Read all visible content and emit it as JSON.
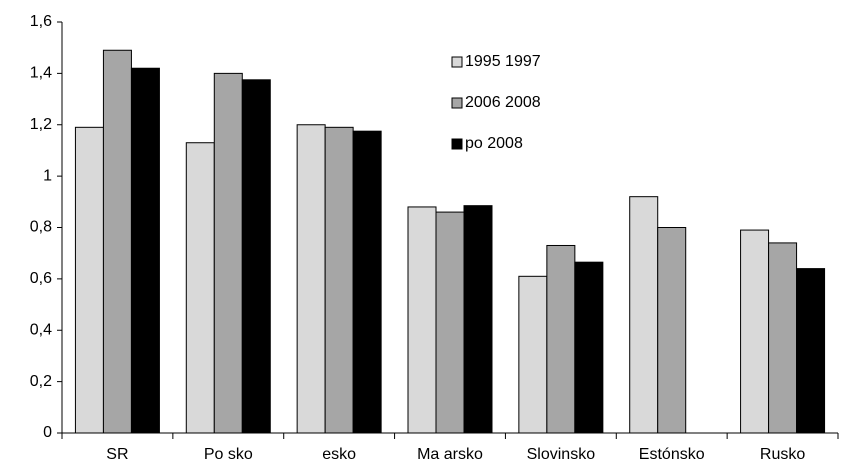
{
  "chart_data": {
    "type": "bar",
    "categories": [
      "SR",
      "Po sko",
      "esko",
      "Ma arsko",
      "Slovinsko",
      "Estónsko",
      "Rusko"
    ],
    "series": [
      {
        "name": "1995 1997",
        "color": "#d9d9d9",
        "values": [
          1.19,
          1.13,
          1.2,
          0.88,
          0.61,
          0.92,
          0.79
        ]
      },
      {
        "name": "2006 2008",
        "color": "#a6a6a6",
        "values": [
          1.49,
          1.4,
          1.19,
          0.86,
          0.73,
          0.8,
          0.74
        ]
      },
      {
        "name": "po 2008",
        "color": "#000000",
        "values": [
          1.42,
          1.375,
          1.175,
          0.885,
          0.665,
          null,
          0.64
        ]
      }
    ],
    "ylim": [
      0,
      1.6
    ],
    "yticks": [
      0,
      {
        "value": 0.2,
        "label": "0,2"
      },
      {
        "value": 0.4,
        "label": "0,4"
      },
      {
        "value": 0.6,
        "label": "0,6"
      },
      {
        "value": 0.8,
        "label": "0,8"
      },
      1,
      {
        "value": 1.2,
        "label": "1,2"
      },
      {
        "value": 1.4,
        "label": "1,4"
      },
      {
        "value": 1.6,
        "label": "1,6"
      }
    ],
    "grid": false
  }
}
